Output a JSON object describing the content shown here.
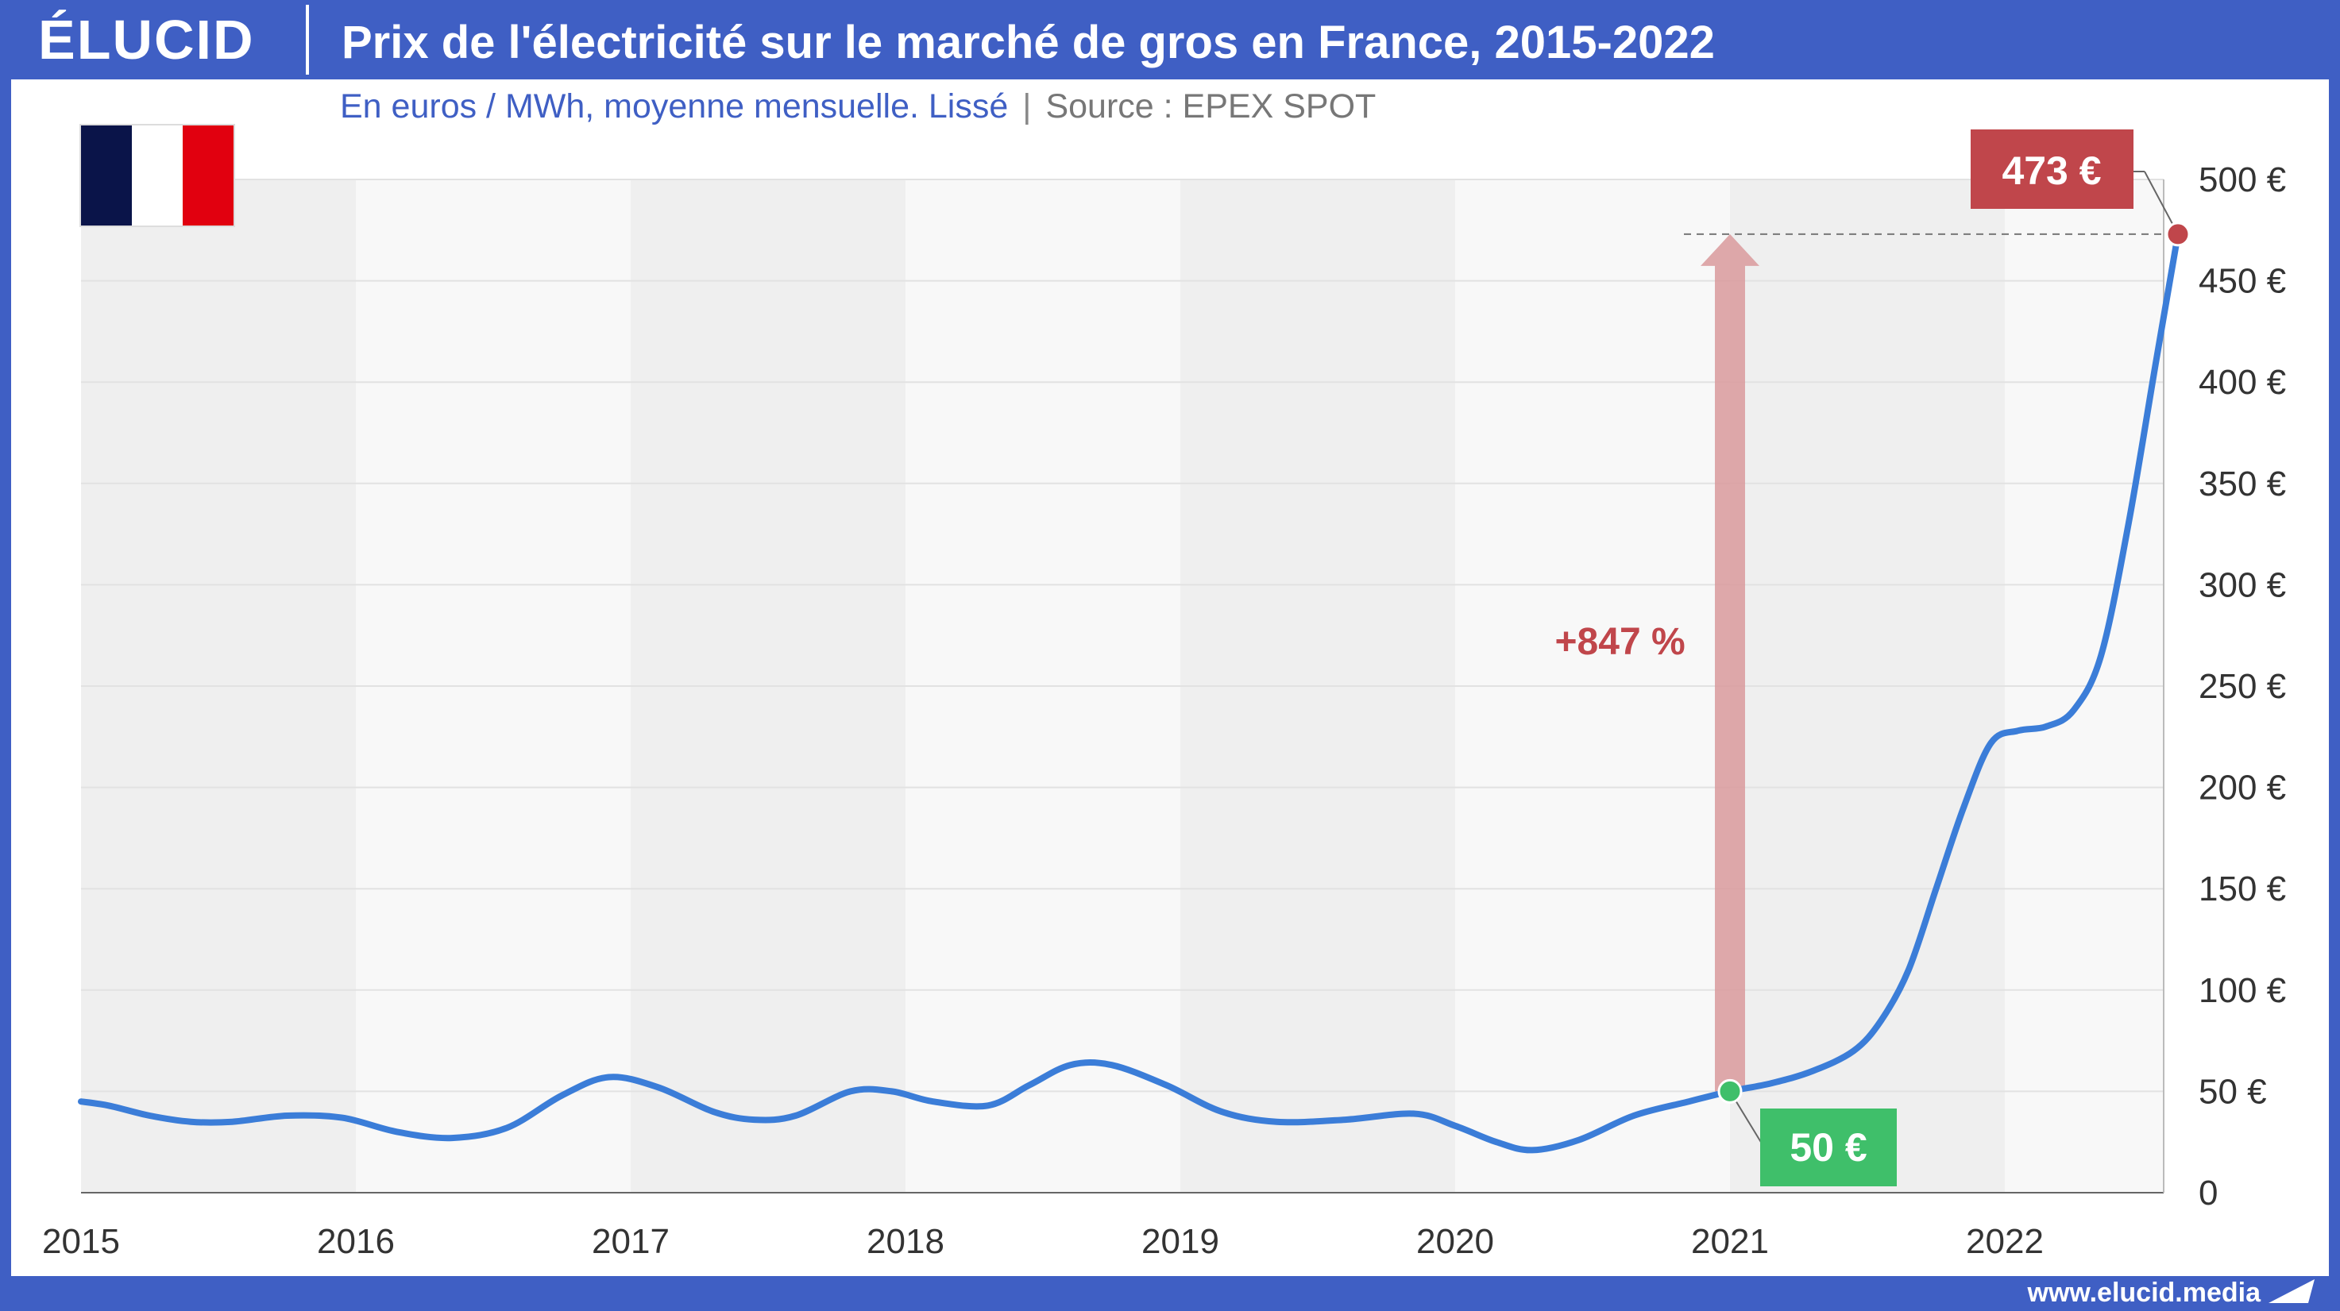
{
  "header": {
    "logo": "ÉLUCID",
    "title": "Prix de l'électricité sur le marché de gros en France, 2015-2022"
  },
  "subtitle": {
    "text": "En euros / MWh, moyenne mensuelle. Lissé",
    "separator": "|",
    "source": "Source : EPEX SPOT"
  },
  "flag": {
    "country": "France",
    "colors": [
      "#0a1449",
      "#ffffff",
      "#e1000f"
    ]
  },
  "footer": {
    "website": "www.elucid.media"
  },
  "colors": {
    "frame": "#3f5fc4",
    "line": "#3b7dd8",
    "start_marker": "#3fbf6a",
    "end_marker": "#c0464b",
    "arrow": "#d99a9c",
    "band_dark": "#efefef",
    "band_light": "#f8f8f8"
  },
  "chart_data": {
    "type": "line",
    "title": "Prix de l'électricité sur le marché de gros en France, 2015-2022",
    "subtitle": "En euros / MWh, moyenne mensuelle. Lissé",
    "ylabel": "",
    "xlabel": "",
    "ylim": [
      0,
      500
    ],
    "xlim": [
      2015,
      2022.63
    ],
    "y_ticks": [
      0,
      50,
      100,
      150,
      200,
      250,
      300,
      350,
      400,
      450,
      500
    ],
    "y_tick_labels": [
      "0",
      "50 €",
      "100 €",
      "150 €",
      "200 €",
      "250 €",
      "300 €",
      "350 €",
      "400 €",
      "450 €",
      "500 €"
    ],
    "x_ticks": [
      2015,
      2016,
      2017,
      2018,
      2019,
      2020,
      2021,
      2022
    ],
    "x_tick_labels": [
      "2015",
      "2016",
      "2017",
      "2018",
      "2019",
      "2020",
      "2021",
      "2022"
    ],
    "grid": true,
    "legend": "none",
    "series": [
      {
        "x": [
          2015.0,
          2015.1,
          2015.25,
          2015.4,
          2015.55,
          2015.75,
          2015.95,
          2016.15,
          2016.35,
          2016.55,
          2016.75,
          2016.92,
          2017.1,
          2017.3,
          2017.45,
          2017.6,
          2017.8,
          2017.95,
          2018.1,
          2018.3,
          2018.45,
          2018.6,
          2018.75,
          2018.95,
          2019.15,
          2019.35,
          2019.6,
          2019.85,
          2020.0,
          2020.15,
          2020.28,
          2020.45,
          2020.65,
          2020.85,
          2021.0,
          2021.15,
          2021.3,
          2021.45,
          2021.55,
          2021.65,
          2021.75,
          2021.85,
          2021.95,
          2022.05,
          2022.15,
          2022.25,
          2022.35,
          2022.45,
          2022.55,
          2022.63
        ],
        "y": [
          45,
          43,
          38,
          35,
          35,
          38,
          37,
          30,
          27,
          32,
          48,
          57,
          52,
          40,
          36,
          38,
          50,
          50,
          45,
          43,
          53,
          63,
          63,
          53,
          40,
          35,
          36,
          39,
          33,
          25,
          21,
          26,
          38,
          45,
          50,
          54,
          60,
          70,
          85,
          110,
          150,
          190,
          222,
          228,
          230,
          238,
          265,
          330,
          410,
          473
        ]
      }
    ],
    "annotations": [
      {
        "text": "50 €",
        "x": 2021.0,
        "y": 50
      },
      {
        "text": "473 €",
        "x": 2022.63,
        "y": 473
      },
      {
        "text": "+847 %",
        "x": 2020.6,
        "y": 272
      }
    ]
  }
}
